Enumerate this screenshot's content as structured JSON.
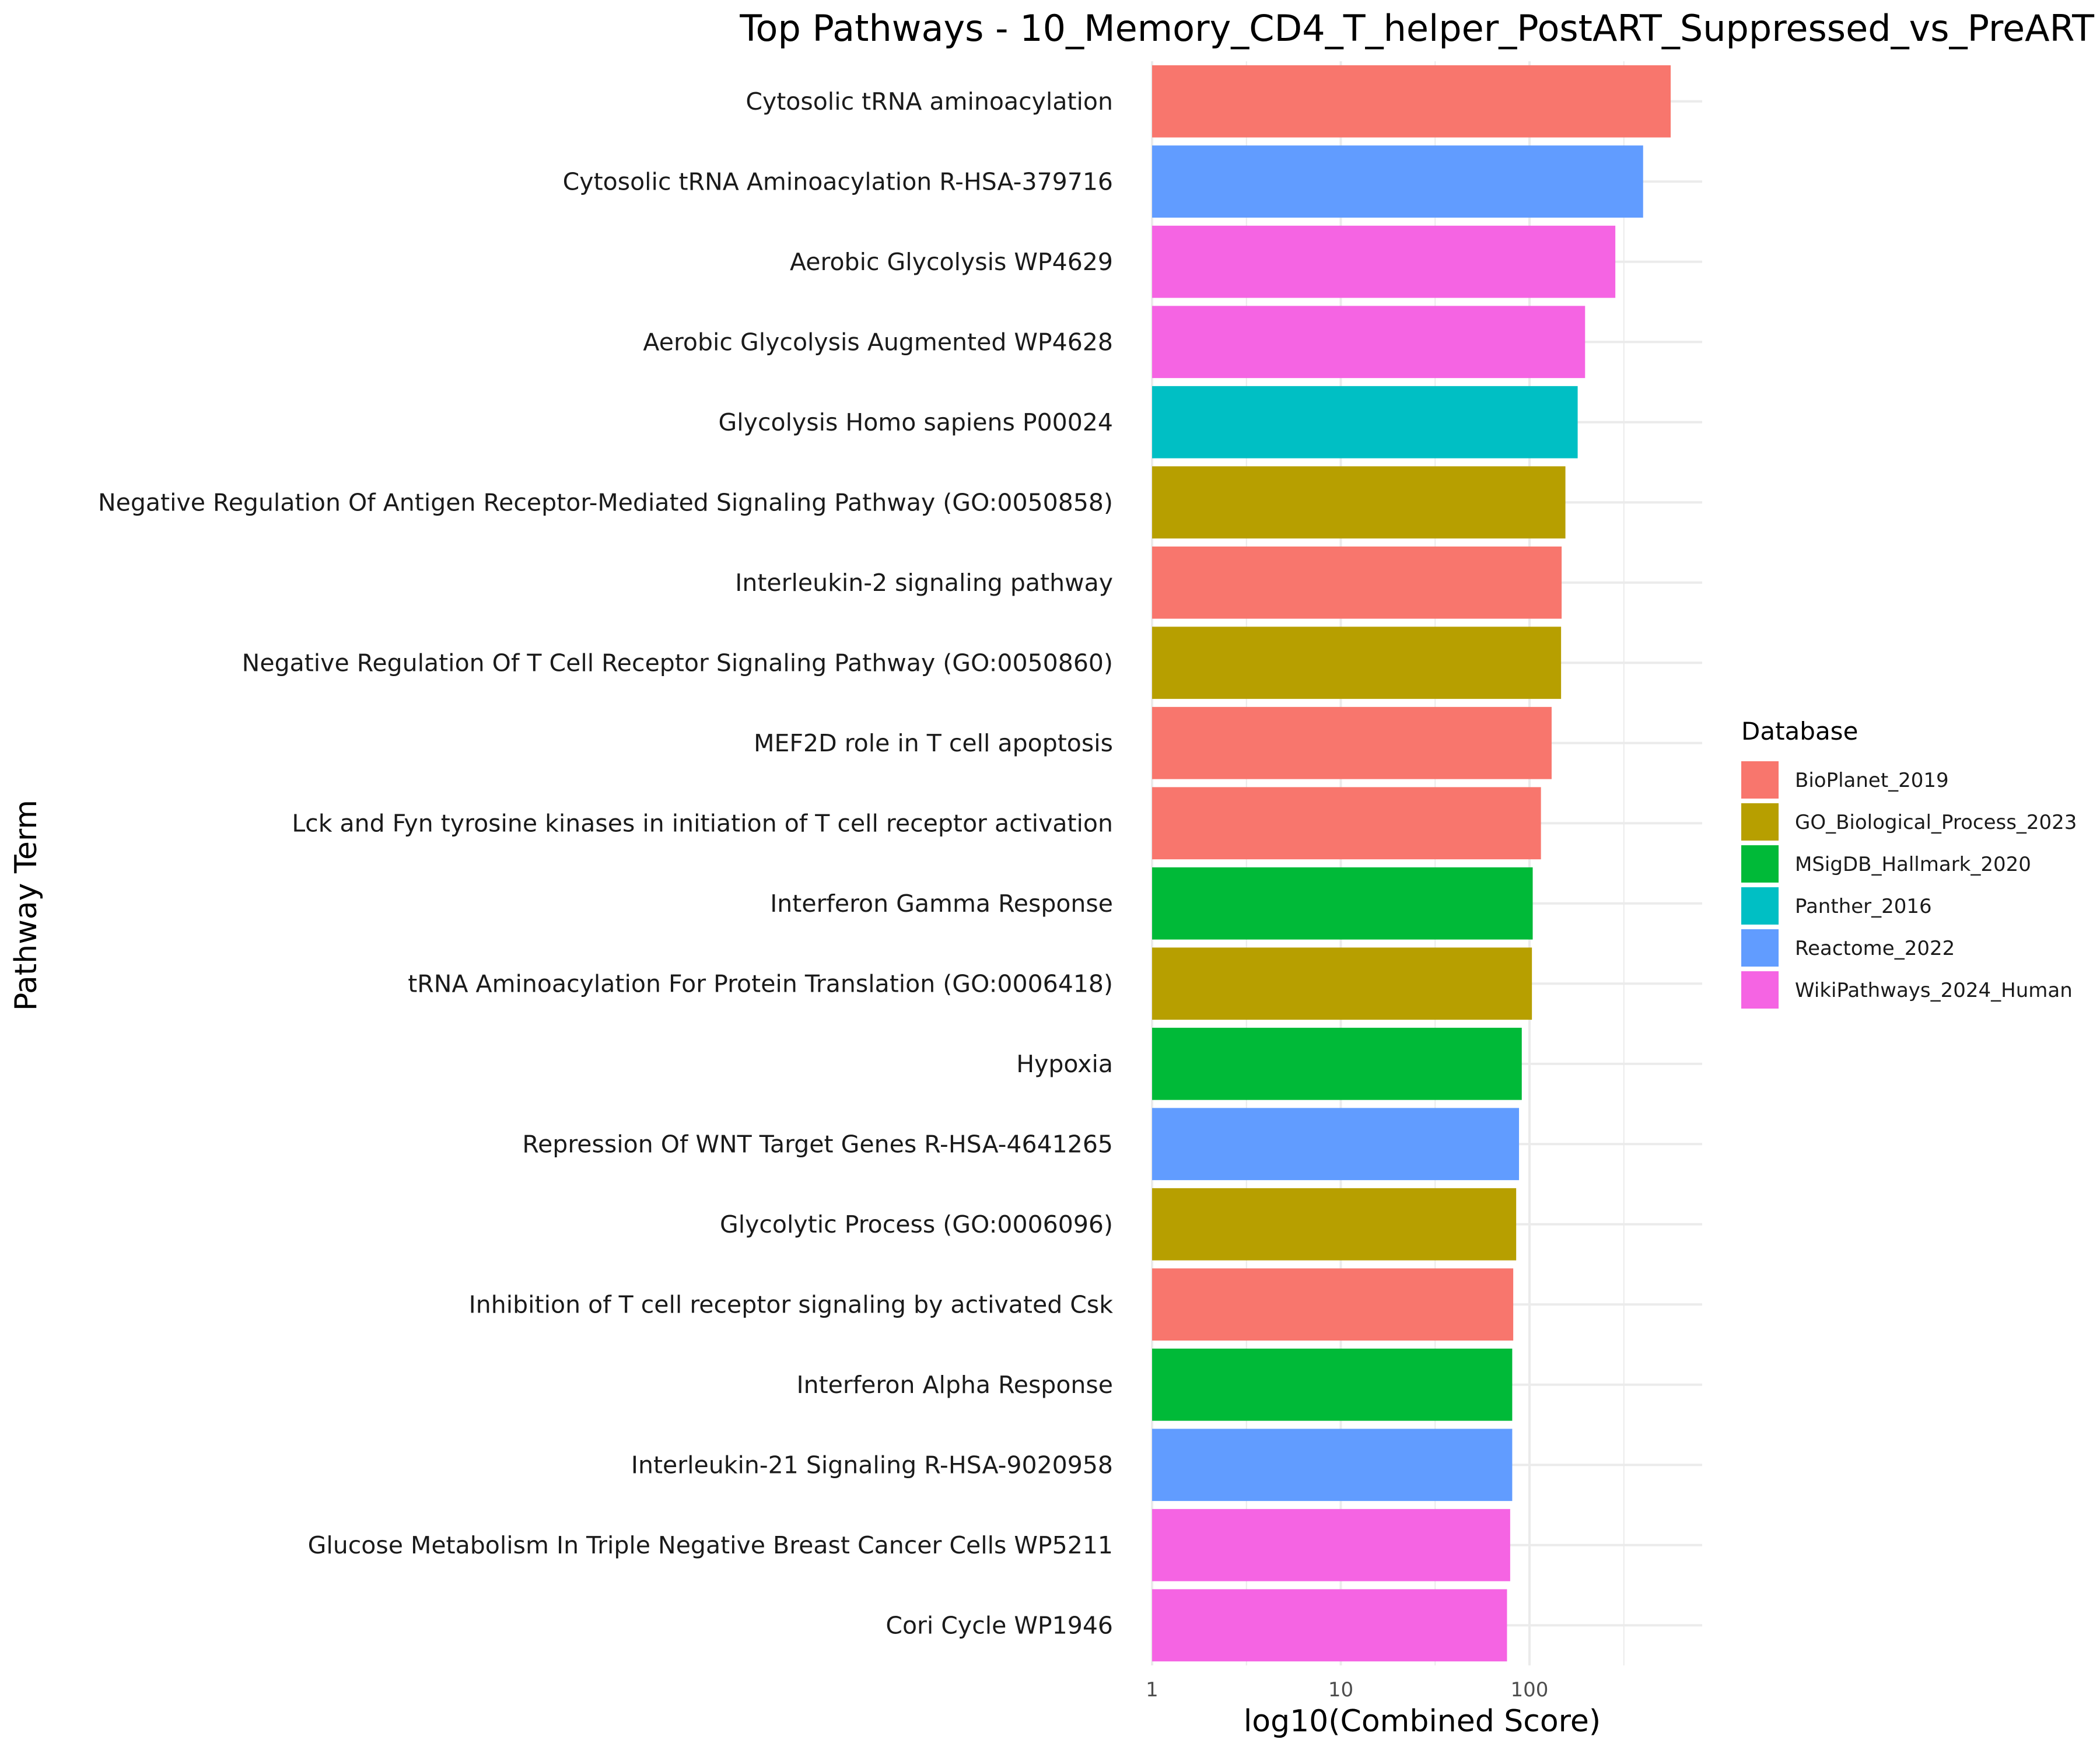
{
  "chart_data": {
    "type": "bar",
    "orientation": "horizontal",
    "title": "Top Pathways - 10_Memory_CD4_T_helper_PostART_Suppressed_vs_PreART",
    "xlabel": "log10(Combined Score)",
    "ylabel": "Pathway Term",
    "x_scale": "log10",
    "xlim": [
      1,
      1000
    ],
    "x_ticks": [
      "1",
      "10",
      "100"
    ],
    "grid": true,
    "legend": {
      "title": "Database",
      "position": "right",
      "entries": [
        {
          "name": "BioPlanet_2019",
          "color": "#F8766D"
        },
        {
          "name": "GO_Biological_Process_2023",
          "color": "#B79F00"
        },
        {
          "name": "MSigDB_Hallmark_2020",
          "color": "#00BA38"
        },
        {
          "name": "Panther_2016",
          "color": "#00BFC4"
        },
        {
          "name": "Reactome_2022",
          "color": "#619CFF"
        },
        {
          "name": "WikiPathways_2024_Human",
          "color": "#F564E3"
        }
      ]
    },
    "bars": [
      {
        "term": "Cytosolic tRNA aminoacylation",
        "database": "BioPlanet_2019",
        "value": 560
      },
      {
        "term": "Cytosolic tRNA Aminoacylation R-HSA-379716",
        "database": "Reactome_2022",
        "value": 400
      },
      {
        "term": "Aerobic Glycolysis WP4629",
        "database": "WikiPathways_2024_Human",
        "value": 285
      },
      {
        "term": "Aerobic Glycolysis Augmented WP4628",
        "database": "WikiPathways_2024_Human",
        "value": 197
      },
      {
        "term": "Glycolysis Homo sapiens P00024",
        "database": "Panther_2016",
        "value": 180
      },
      {
        "term": "Negative Regulation Of Antigen Receptor-Mediated Signaling Pathway (GO:0050858)",
        "database": "GO_Biological_Process_2023",
        "value": 155
      },
      {
        "term": "Interleukin-2 signaling pathway",
        "database": "BioPlanet_2019",
        "value": 148
      },
      {
        "term": "Negative Regulation Of T Cell Receptor Signaling Pathway (GO:0050860)",
        "database": "GO_Biological_Process_2023",
        "value": 147
      },
      {
        "term": "MEF2D role in T cell apoptosis",
        "database": "BioPlanet_2019",
        "value": 131
      },
      {
        "term": "Lck and Fyn tyrosine kinases in initiation of T cell receptor activation",
        "database": "BioPlanet_2019",
        "value": 115
      },
      {
        "term": "Interferon Gamma Response",
        "database": "MSigDB_Hallmark_2020",
        "value": 104
      },
      {
        "term": "tRNA Aminoacylation For Protein Translation (GO:0006418)",
        "database": "GO_Biological_Process_2023",
        "value": 103
      },
      {
        "term": "Hypoxia",
        "database": "MSigDB_Hallmark_2020",
        "value": 91
      },
      {
        "term": "Repression Of WNT Target Genes R-HSA-4641265",
        "database": "Reactome_2022",
        "value": 88
      },
      {
        "term": "Glycolytic Process (GO:0006096)",
        "database": "GO_Biological_Process_2023",
        "value": 85
      },
      {
        "term": "Inhibition of T cell receptor signaling by activated Csk",
        "database": "BioPlanet_2019",
        "value": 82
      },
      {
        "term": "Interferon Alpha Response",
        "database": "MSigDB_Hallmark_2020",
        "value": 81
      },
      {
        "term": "Interleukin-21 Signaling R-HSA-9020958",
        "database": "Reactome_2022",
        "value": 81
      },
      {
        "term": "Glucose Metabolism In Triple Negative Breast Cancer Cells WP5211",
        "database": "WikiPathways_2024_Human",
        "value": 79
      },
      {
        "term": "Cori Cycle WP1946",
        "database": "WikiPathways_2024_Human",
        "value": 76
      }
    ]
  }
}
